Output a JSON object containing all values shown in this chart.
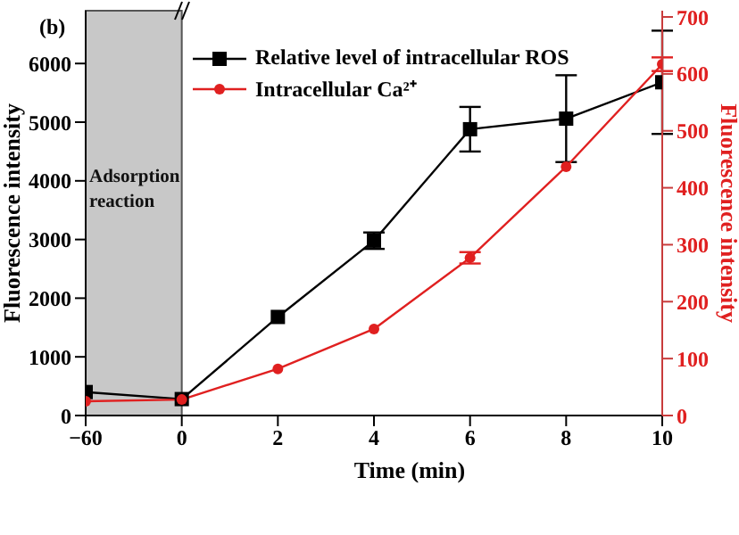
{
  "chart_data": {
    "type": "line",
    "title": "(b)",
    "xlabel": "Time (min)",
    "ylabel": "Fluorescence intensity",
    "y2label": "Fluorescence intensity",
    "categories": [
      "−60",
      "0",
      "2",
      "4",
      "6",
      "8",
      "10"
    ],
    "series": [
      {
        "name": "Relative level of intracellular ROS",
        "color": "#000000",
        "marker": "square",
        "values": [
          400,
          280,
          1680,
          2980,
          4880,
          5060,
          5680
        ],
        "errors": [
          null,
          null,
          null,
          140,
          380,
          740,
          880
        ]
      },
      {
        "name": "Intracellular Ca²⁺",
        "color": "#e02020",
        "marker": "circle",
        "axis": "y2",
        "values": [
          25,
          28,
          82,
          152,
          277,
          437,
          617
        ],
        "errors": [
          null,
          null,
          null,
          null,
          10,
          null,
          12
        ]
      }
    ],
    "ylim": [
      0,
      6900
    ],
    "yticks": [
      0,
      1000,
      2000,
      3000,
      4000,
      5000,
      6000
    ],
    "y2lim": [
      0,
      711
    ],
    "y2ticks": [
      0,
      100,
      200,
      300,
      400,
      500,
      600,
      700
    ],
    "bands": [
      {
        "axis": "x",
        "from": "−60",
        "to": "0",
        "label": "Adsorption reaction",
        "color": "#c8c8c8"
      }
    ],
    "legend": "top left",
    "grid": false,
    "line_style": "solid"
  }
}
